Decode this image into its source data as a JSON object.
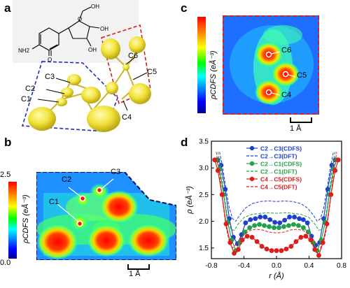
{
  "panels": {
    "a": {
      "label": "a",
      "atoms": [
        "C1",
        "C2",
        "C3",
        "C4",
        "C5",
        "C6"
      ],
      "molecule": {
        "o1": "O",
        "o2": "O",
        "nh2": "NH2",
        "oh1": "OH",
        "oh2": "OH",
        "oh3": "OH"
      }
    },
    "b": {
      "label": "b",
      "colorbar_label": "ρCDFS (eÅ⁻³)",
      "cb_max": "2.5",
      "cb_min": "0.0",
      "atoms": [
        "C1",
        "C2",
        "C3"
      ],
      "scale": "1 Å"
    },
    "c": {
      "label": "c",
      "colorbar_label": "ρCDFS (eÅ⁻³)",
      "atoms": [
        "C4",
        "C5",
        "C6"
      ],
      "scale": "1 Å"
    },
    "d": {
      "label": "d"
    }
  },
  "colors": {
    "blue": "#1f3fcf",
    "green": "#22a04a",
    "red": "#e01b1b",
    "box_blue": "#1f2fbf",
    "box_red": "#d42020"
  },
  "chart_data": {
    "type": "line",
    "xlabel": "r (Å)",
    "ylabel": "ρ (eÅ⁻³)",
    "xlim": [
      -0.8,
      0.8
    ],
    "ylim": [
      1.3,
      3.5
    ],
    "xticks": [
      "-0.8",
      "-0.4",
      "0.0",
      "0.4",
      "0.8"
    ],
    "yticks": [
      "1.5",
      "2.0",
      "2.5",
      "3.0",
      "3.5"
    ],
    "legend_position": "top-center",
    "series": [
      {
        "name": "C2→C3(CDFS)",
        "color": "#1f3fcf",
        "style": "solid-marker",
        "x": [
          -0.72,
          -0.68,
          -0.63,
          -0.58,
          -0.53,
          -0.48,
          -0.43,
          -0.38,
          -0.32,
          -0.26,
          -0.2,
          -0.14,
          -0.08,
          -0.02,
          0.04,
          0.1,
          0.16,
          0.22,
          0.28,
          0.33,
          0.38,
          0.43,
          0.48,
          0.53,
          0.58,
          0.63,
          0.68,
          0.72
        ],
        "y": [
          3.15,
          3.05,
          2.6,
          2.05,
          1.7,
          1.58,
          1.75,
          1.97,
          2.03,
          2.05,
          2.08,
          2.08,
          2.03,
          1.98,
          1.97,
          2.02,
          2.08,
          2.08,
          2.05,
          2.03,
          1.97,
          1.72,
          1.55,
          1.6,
          2.05,
          2.6,
          3.05,
          3.15
        ]
      },
      {
        "name": "C2→C3(DFT)",
        "color": "#1f3fcf",
        "style": "dashed",
        "x": [
          -0.7,
          -0.66,
          -0.62,
          -0.58,
          -0.54,
          -0.5,
          -0.45,
          -0.38,
          -0.3,
          -0.2,
          -0.1,
          0.0,
          0.1,
          0.2,
          0.3,
          0.38,
          0.45,
          0.5,
          0.54,
          0.58,
          0.62,
          0.66,
          0.7
        ],
        "y": [
          3.3,
          3.0,
          2.6,
          2.25,
          2.05,
          2.0,
          2.12,
          2.25,
          2.33,
          2.37,
          2.38,
          2.37,
          2.38,
          2.37,
          2.33,
          2.25,
          2.12,
          2.0,
          2.05,
          2.25,
          2.6,
          3.0,
          3.3
        ]
      },
      {
        "name": "C2→C1(CDFS)",
        "color": "#22a04a",
        "style": "solid-marker",
        "x": [
          -0.74,
          -0.7,
          -0.65,
          -0.6,
          -0.55,
          -0.5,
          -0.45,
          -0.39,
          -0.33,
          -0.27,
          -0.21,
          -0.15,
          -0.09,
          -0.03,
          0.03,
          0.09,
          0.15,
          0.21,
          0.27,
          0.33,
          0.39,
          0.45,
          0.5,
          0.55,
          0.6,
          0.65,
          0.7,
          0.74
        ],
        "y": [
          3.15,
          2.98,
          2.5,
          1.98,
          1.65,
          1.45,
          1.6,
          1.8,
          1.88,
          1.92,
          1.94,
          1.92,
          1.9,
          1.88,
          1.88,
          1.9,
          1.92,
          1.94,
          1.92,
          1.88,
          1.8,
          1.6,
          1.45,
          1.65,
          1.98,
          2.5,
          2.98,
          3.15
        ]
      },
      {
        "name": "C2→C1(DFT)",
        "color": "#22a04a",
        "style": "dashed",
        "x": [
          -0.72,
          -0.68,
          -0.64,
          -0.6,
          -0.56,
          -0.52,
          -0.47,
          -0.4,
          -0.3,
          -0.2,
          -0.1,
          0.0,
          0.1,
          0.2,
          0.3,
          0.4,
          0.47,
          0.52,
          0.56,
          0.6,
          0.64,
          0.68,
          0.72
        ],
        "y": [
          3.3,
          2.95,
          2.45,
          2.05,
          1.85,
          1.83,
          1.95,
          2.07,
          2.13,
          2.15,
          2.16,
          2.15,
          2.16,
          2.15,
          2.13,
          2.07,
          1.95,
          1.83,
          1.85,
          2.05,
          2.45,
          2.95,
          3.3
        ]
      },
      {
        "name": "C4→C5(CDFS)",
        "color": "#e01b1b",
        "style": "solid-marker",
        "x": [
          -0.76,
          -0.72,
          -0.67,
          -0.62,
          -0.57,
          -0.52,
          -0.47,
          -0.42,
          -0.36,
          -0.3,
          -0.24,
          -0.18,
          -0.12,
          -0.06,
          0.0,
          0.06,
          0.12,
          0.18,
          0.24,
          0.3,
          0.36,
          0.42,
          0.47,
          0.52,
          0.57,
          0.62,
          0.67,
          0.72,
          0.76
        ],
        "y": [
          3.15,
          2.95,
          2.5,
          1.95,
          1.6,
          1.4,
          1.47,
          1.65,
          1.72,
          1.7,
          1.62,
          1.53,
          1.48,
          1.45,
          1.45,
          1.45,
          1.48,
          1.53,
          1.62,
          1.7,
          1.72,
          1.65,
          1.47,
          1.36,
          1.6,
          1.95,
          2.5,
          2.95,
          3.15
        ]
      },
      {
        "name": "C4→C5(DFT)",
        "color": "#e01b1b",
        "style": "dashed",
        "x": [
          -0.74,
          -0.7,
          -0.66,
          -0.62,
          -0.58,
          -0.54,
          -0.49,
          -0.42,
          -0.34,
          -0.26,
          -0.18,
          -0.1,
          0.0,
          0.1,
          0.18,
          0.26,
          0.34,
          0.42,
          0.49,
          0.54,
          0.58,
          0.62,
          0.66,
          0.7,
          0.74
        ],
        "y": [
          3.3,
          2.9,
          2.35,
          1.9,
          1.62,
          1.5,
          1.58,
          1.72,
          1.82,
          1.85,
          1.84,
          1.8,
          1.78,
          1.8,
          1.84,
          1.85,
          1.82,
          1.72,
          1.58,
          1.5,
          1.62,
          1.9,
          2.35,
          2.9,
          3.3
        ]
      }
    ]
  }
}
